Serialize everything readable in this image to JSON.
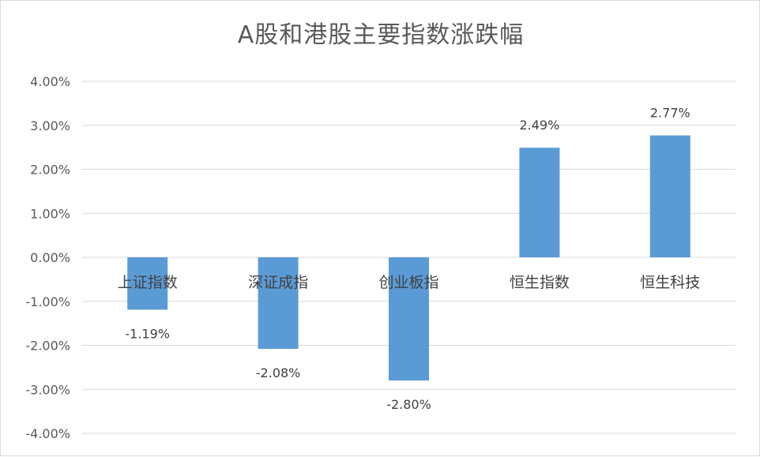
{
  "chart_data": {
    "type": "bar",
    "title": "A股和港股主要指数涨跌幅",
    "categories": [
      "上证指数",
      "深证成指",
      "创业板指",
      "恒生指数",
      "恒生科技"
    ],
    "values": [
      -1.19,
      -2.08,
      -2.8,
      2.49,
      2.77
    ],
    "data_labels": [
      "-1.19%",
      "-2.08%",
      "-2.80%",
      "2.49%",
      "2.77%"
    ],
    "ylim": [
      -4,
      4
    ],
    "yticks": [
      4,
      3,
      2,
      1,
      0,
      -1,
      -2,
      -3,
      -4
    ],
    "ytick_labels": [
      "4.00%",
      "3.00%",
      "2.00%",
      "1.00%",
      "0.00%",
      "-1.00%",
      "-2.00%",
      "-3.00%",
      "-4.00%"
    ],
    "grid": true,
    "legend": "none",
    "bar_color": "#5b9bd5"
  }
}
